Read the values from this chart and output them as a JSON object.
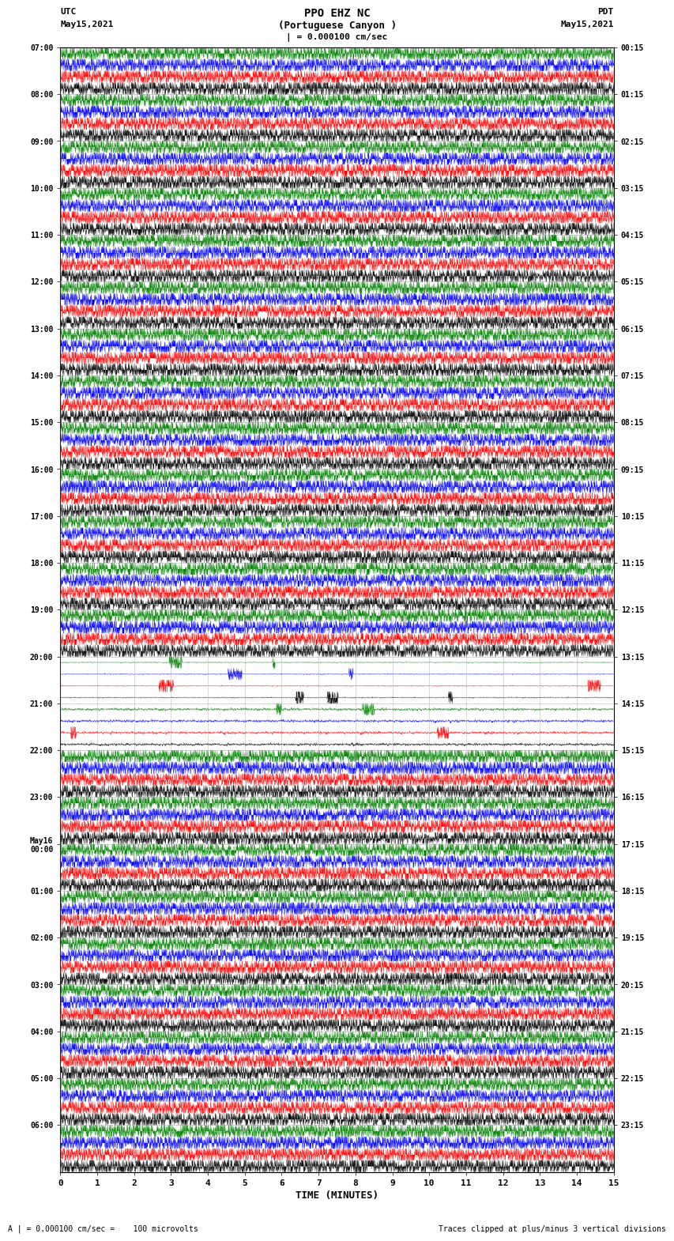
{
  "title_line1": "PPO EHZ NC",
  "title_line2": "(Portuguese Canyon )",
  "title_line3": "| = 0.000100 cm/sec",
  "left_label_top": "UTC",
  "left_label_date": "May15,2021",
  "right_label_top": "PDT",
  "right_label_date": "May15,2021",
  "bottom_label": "TIME (MINUTES)",
  "bottom_note_left": "A | = 0.000100 cm/sec =    100 microvolts",
  "bottom_note_right": "Traces clipped at plus/minus 3 vertical divisions",
  "utc_times": [
    "07:00",
    "08:00",
    "09:00",
    "10:00",
    "11:00",
    "12:00",
    "13:00",
    "14:00",
    "15:00",
    "16:00",
    "17:00",
    "18:00",
    "19:00",
    "20:00",
    "21:00",
    "22:00",
    "23:00",
    "May16\n00:00",
    "01:00",
    "02:00",
    "03:00",
    "04:00",
    "05:00",
    "06:00"
  ],
  "pdt_times": [
    "00:15",
    "01:15",
    "02:15",
    "03:15",
    "04:15",
    "05:15",
    "06:15",
    "07:15",
    "08:15",
    "09:15",
    "10:15",
    "11:15",
    "12:15",
    "13:15",
    "14:15",
    "15:15",
    "16:15",
    "17:15",
    "18:15",
    "19:15",
    "20:15",
    "21:15",
    "22:15",
    "23:15"
  ],
  "n_rows": 24,
  "n_bands": 4,
  "colors": [
    "black",
    "red",
    "blue",
    "green"
  ],
  "bg_color": "white",
  "plot_bg_color": "white",
  "x_ticks": [
    0,
    1,
    2,
    3,
    4,
    5,
    6,
    7,
    8,
    9,
    10,
    11,
    12,
    13,
    14,
    15
  ],
  "x_min": 0,
  "x_max": 15,
  "noise_seed": 42,
  "quiet_rows": [
    13,
    14
  ],
  "quiet_scale": [
    0.04,
    0.12
  ]
}
